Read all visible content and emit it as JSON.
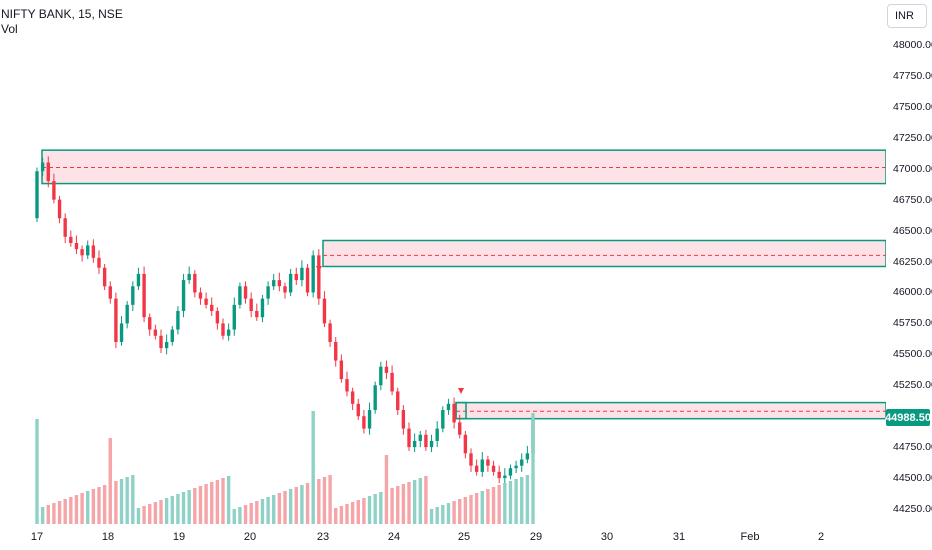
{
  "chart_data": {
    "type": "candlestick",
    "title": "NIFTY BANK, 15, NSE",
    "volume_label": "Vol",
    "currency": "INR",
    "last_price": "44988.50",
    "y_ticks": [
      "48000.00",
      "47750.00",
      "47500.00",
      "47250.00",
      "47000.00",
      "46750.00",
      "46500.00",
      "46250.00",
      "46000.00",
      "45750.00",
      "45500.00",
      "45250.00",
      "44750.00",
      "44500.00",
      "44250.00"
    ],
    "x_ticks": [
      "17",
      "18",
      "19",
      "20",
      "23",
      "24",
      "25",
      "29",
      "30",
      "31",
      "Feb",
      "2"
    ],
    "ylim": [
      44200,
      48100
    ],
    "zones": [
      {
        "top": 47150,
        "bottom": 46880,
        "mid": 47010
      },
      {
        "top": 46420,
        "bottom": 46210,
        "mid": 46300
      },
      {
        "top": 45110,
        "bottom": 44980,
        "mid": 45040
      }
    ],
    "colors": {
      "up": "#089981",
      "down": "#f23645",
      "zone_fill": "#fde3e7",
      "zone_border": "#089981",
      "vol_up": "#8fd1c6",
      "vol_down": "#f5a4a8"
    },
    "closes": [
      46980,
      47050,
      46900,
      46750,
      46600,
      46450,
      46400,
      46350,
      46300,
      46380,
      46280,
      46200,
      46050,
      45950,
      45600,
      45750,
      45900,
      46050,
      46150,
      45800,
      45700,
      45650,
      45550,
      45600,
      45700,
      45850,
      46100,
      46150,
      46000,
      45950,
      45900,
      45850,
      45750,
      45650,
      45700,
      45900,
      46050,
      45950,
      45850,
      45800,
      45950,
      46050,
      46100,
      46050,
      46000,
      46150,
      46100,
      46200,
      46000,
      46300,
      45950,
      45750,
      45600,
      45450,
      45300,
      45200,
      45100,
      45000,
      44900,
      45050,
      45250,
      45400,
      45350,
      45200,
      45050,
      44900,
      44750,
      44800,
      44850,
      44750,
      44800,
      44900,
      45050,
      45100,
      44950,
      44850,
      44700,
      44600,
      44550,
      44650,
      44600,
      44550,
      44500,
      44520,
      44580,
      44600,
      44650,
      44700,
      44988.5
    ]
  }
}
